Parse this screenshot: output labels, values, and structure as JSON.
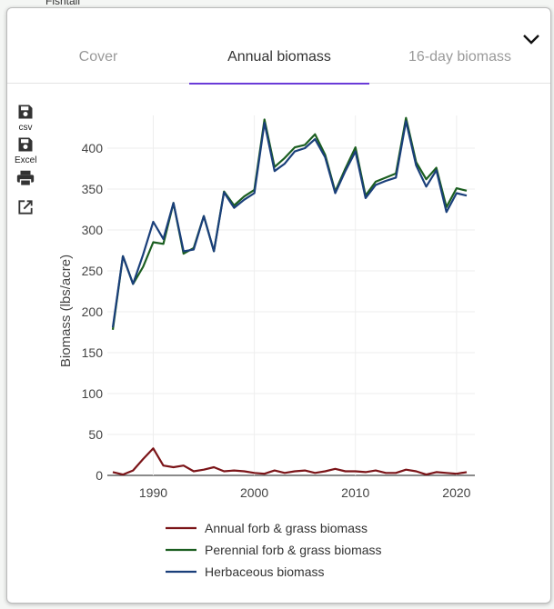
{
  "map": {
    "label": "Fishtail"
  },
  "tabs": [
    {
      "label": "Cover",
      "active": false
    },
    {
      "label": "Annual biomass",
      "active": true
    },
    {
      "label": "16-day biomass",
      "active": false
    }
  ],
  "toolbar": {
    "csv_label": "csv",
    "excel_label": "Excel",
    "icons": [
      "save-icon",
      "save-icon",
      "print-icon",
      "open-in-new-icon"
    ]
  },
  "colors": {
    "accent": "#6a3bd8",
    "annual": "#7b1418",
    "perennial": "#1b5e20",
    "herbaceous": "#1a3f7a"
  },
  "chart_data": {
    "type": "line",
    "title": "",
    "xlabel": "",
    "ylabel": "Biomass (lbs/acre)",
    "xlim": [
      1986,
      2021
    ],
    "ylim": [
      0,
      440
    ],
    "xticks": [
      1990,
      2000,
      2010,
      2020
    ],
    "yticks": [
      0,
      50,
      100,
      150,
      200,
      250,
      300,
      350,
      400
    ],
    "grid": true,
    "legend_placement": "bottom",
    "x": [
      1986,
      1987,
      1988,
      1989,
      1990,
      1991,
      1992,
      1993,
      1994,
      1995,
      1996,
      1997,
      1998,
      1999,
      2000,
      2001,
      2002,
      2003,
      2004,
      2005,
      2006,
      2007,
      2008,
      2009,
      2010,
      2011,
      2012,
      2013,
      2014,
      2015,
      2016,
      2017,
      2018,
      2019,
      2020,
      2021
    ],
    "series": [
      {
        "name": "Annual forb & grass biomass",
        "color": "#7b1418",
        "values": [
          4,
          1,
          6,
          20,
          33,
          12,
          10,
          12,
          5,
          7,
          10,
          5,
          6,
          5,
          3,
          2,
          6,
          3,
          5,
          6,
          3,
          5,
          8,
          5,
          5,
          4,
          6,
          3,
          3,
          7,
          5,
          1,
          4,
          3,
          2,
          4
        ]
      },
      {
        "name": "Perennial forb & grass biomass",
        "color": "#1b5e20",
        "values": [
          178,
          268,
          234,
          255,
          285,
          283,
          333,
          271,
          278,
          317,
          274,
          347,
          330,
          341,
          349,
          435,
          377,
          388,
          401,
          404,
          417,
          392,
          347,
          375,
          401,
          342,
          359,
          364,
          369,
          437,
          383,
          362,
          376,
          328,
          351,
          348
        ]
      },
      {
        "name": "Herbaceous biomass",
        "color": "#1a3f7a",
        "values": [
          181,
          268,
          234,
          270,
          310,
          289,
          333,
          274,
          276,
          317,
          274,
          346,
          327,
          337,
          345,
          431,
          372,
          381,
          396,
          400,
          411,
          389,
          345,
          372,
          396,
          339,
          355,
          360,
          364,
          433,
          379,
          353,
          373,
          322,
          345,
          342
        ]
      }
    ]
  }
}
